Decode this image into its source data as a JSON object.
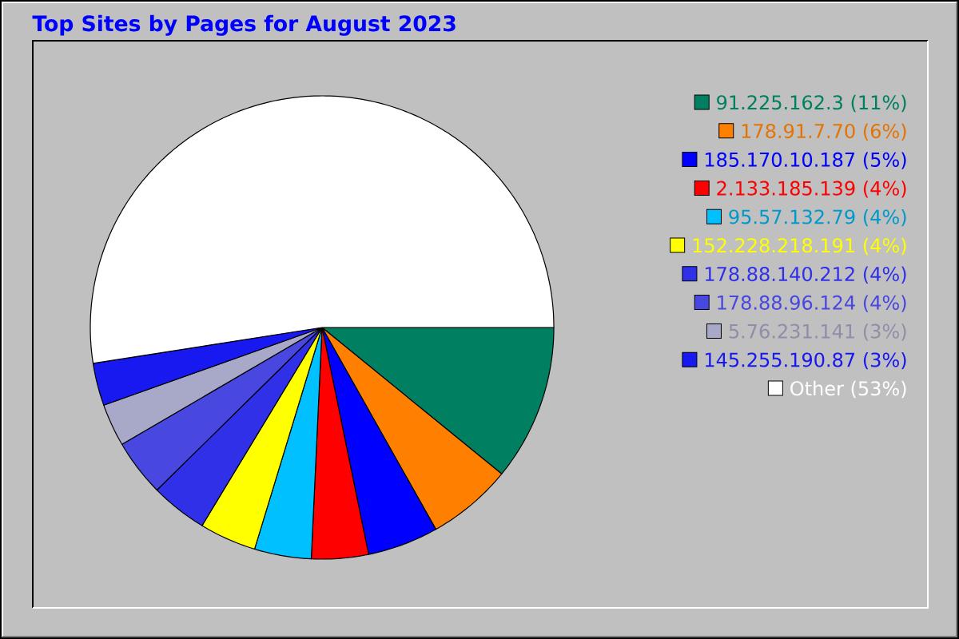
{
  "chart_data": {
    "type": "pie",
    "title": "Top Sites by Pages for August 2023",
    "categories": [
      "91.225.162.3",
      "178.91.7.70",
      "185.170.10.187",
      "2.133.185.139",
      "95.57.132.79",
      "152.228.218.191",
      "178.88.140.212",
      "178.88.96.124",
      "5.76.231.141",
      "145.255.190.87",
      "Other"
    ],
    "values": [
      11,
      6,
      5,
      4,
      4,
      4,
      4,
      4,
      3,
      3,
      53
    ],
    "value_labels": [
      "(11%)",
      "(6%)",
      "(5%)",
      "(4%)",
      "(4%)",
      "(4%)",
      "(4%)",
      "(4%)",
      "(3%)",
      "(3%)",
      "(53%)"
    ],
    "colors": [
      "#008060",
      "#ff8000",
      "#0000ff",
      "#ff0000",
      "#00c0ff",
      "#ffff00",
      "#3030e8",
      "#4848e0",
      "#a8a8c8",
      "#1818f0",
      "#ffffff"
    ],
    "legend": "right"
  }
}
